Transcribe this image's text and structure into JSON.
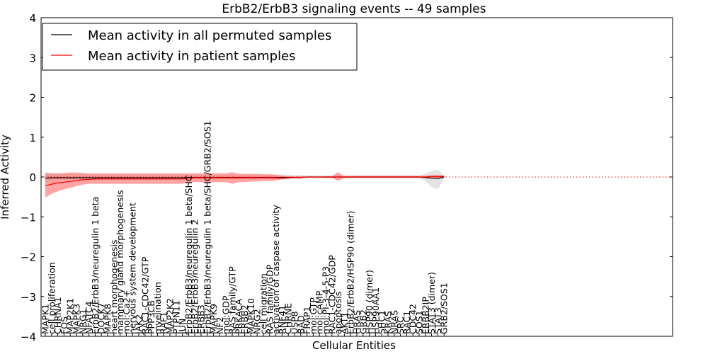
{
  "chart_data": {
    "type": "line",
    "title": "ErbB2/ErbB3 signaling events -- 49 samples",
    "xlabel": "Cellular Entities",
    "ylabel": "Inferred Activity",
    "ylim": [
      -4,
      4
    ],
    "yticks": [
      "−4",
      "−3",
      "−2",
      "−1",
      "0",
      "1",
      "2",
      "3",
      "4"
    ],
    "grid": false,
    "legend_position": "top-left",
    "reference_line": {
      "y": 0,
      "style": "dotted",
      "color": "#ff0000"
    },
    "categories": [
      "MAPK1",
      "cell proliferation",
      "CHRNA1",
      "FOS",
      "MAP2K1",
      "MAPK3",
      "NRG1",
      "NFATC4",
      "ErbB2/ErbB3/neuregulin 1 beta",
      "DOCK7",
      "MAPK8",
      "heart morphogenesis",
      "mammary gland morphogenesis",
      "mol:Ca2+",
      "nervous system development",
      "JAK2",
      "RAC1-CDC42/GTP",
      "PPP3CB",
      "myelination",
      "RAF1",
      "MAP2K2",
      "PTPN11",
      "JUN",
      "ErbB2/ErbB3/neuregulin 1 beta/SHC",
      "ErbB2/ErbB3/neuregulin 2",
      "ERBB3",
      "ErbB2/ErbB3/neuregulin 1 beta/SHC/GRB2/SOS1",
      "MAPK9",
      "NF2",
      "mol:GDP",
      "RAS family/GTP",
      "PRKACA",
      "ERBB2",
      "MAPK10",
      "NRG2",
      "cell migration",
      "RAS family/GDP",
      "activation of caspase activity",
      "RNF41",
      "CHRNE",
      "USP8",
      "BAD",
      "FRAP1",
      "mol:GTP",
      "mol:cAMP",
      "mol:PI-3-4-5-P3",
      "RAC1-CDC42/GDP",
      "apoptosis",
      "AKT1",
      "ErbB2/ErbB2/HSP90 (dimer)",
      "HRAS",
      "GRB2",
      "HSP90 (dimer)",
      "HSP90AA1",
      "SHC1",
      "KRAS",
      "NRAS",
      "SRC",
      "RAC1",
      "CDC42",
      "SOS1",
      "ERBB2IP",
      "STAT3 (dimer)",
      "STAT3",
      "GRB2/SOS1"
    ],
    "series": [
      {
        "name": "Mean activity in all permuted samples",
        "color": "#000000",
        "values": [
          -0.03,
          -0.02,
          -0.02,
          -0.02,
          -0.02,
          -0.02,
          -0.02,
          -0.02,
          -0.02,
          -0.02,
          -0.02,
          -0.02,
          -0.02,
          -0.02,
          -0.02,
          -0.02,
          -0.02,
          -0.02,
          -0.02,
          -0.02,
          -0.02,
          -0.02,
          -0.02,
          -0.01,
          -0.01,
          -0.01,
          -0.01,
          -0.01,
          -0.01,
          -0.01,
          -0.01,
          -0.01,
          -0.01,
          -0.01,
          -0.01,
          -0.01,
          -0.01,
          -0.01,
          -0.01,
          -0.01,
          -0.01,
          -0.01,
          0,
          0,
          0,
          0,
          0,
          0,
          0,
          0,
          0,
          0,
          0,
          0,
          0,
          0,
          0,
          0,
          0,
          0,
          0,
          -0.01,
          -0.03,
          -0.04,
          0
        ],
        "band_lower": [
          -0.12,
          -0.1,
          -0.09,
          -0.08,
          -0.08,
          -0.08,
          -0.08,
          -0.07,
          -0.07,
          -0.07,
          -0.07,
          -0.07,
          -0.07,
          -0.07,
          -0.07,
          -0.07,
          -0.07,
          -0.07,
          -0.07,
          -0.07,
          -0.07,
          -0.07,
          -0.07,
          -0.06,
          -0.06,
          -0.06,
          -0.06,
          -0.06,
          -0.06,
          -0.06,
          -0.06,
          -0.06,
          -0.06,
          -0.06,
          -0.06,
          -0.06,
          -0.06,
          -0.06,
          -0.06,
          -0.06,
          -0.05,
          -0.05,
          -0.04,
          -0.04,
          -0.04,
          -0.04,
          -0.04,
          -0.04,
          -0.04,
          -0.04,
          -0.04,
          -0.04,
          -0.04,
          -0.04,
          -0.04,
          -0.04,
          -0.04,
          -0.04,
          -0.04,
          -0.04,
          -0.04,
          -0.1,
          -0.25,
          -0.3,
          -0.05
        ],
        "band_upper": [
          0.12,
          0.1,
          0.09,
          0.08,
          0.08,
          0.08,
          0.08,
          0.07,
          0.07,
          0.07,
          0.07,
          0.07,
          0.07,
          0.07,
          0.07,
          0.07,
          0.07,
          0.07,
          0.07,
          0.07,
          0.07,
          0.07,
          0.07,
          0.06,
          0.06,
          0.06,
          0.06,
          0.06,
          0.06,
          0.06,
          0.06,
          0.06,
          0.06,
          0.06,
          0.06,
          0.06,
          0.06,
          0.06,
          0.06,
          0.06,
          0.05,
          0.05,
          0.04,
          0.04,
          0.04,
          0.04,
          0.04,
          0.04,
          0.04,
          0.04,
          0.04,
          0.04,
          0.04,
          0.04,
          0.04,
          0.04,
          0.04,
          0.04,
          0.04,
          0.04,
          0.04,
          0.08,
          0.15,
          0.18,
          0.04
        ],
        "band_color": "#cccccc"
      },
      {
        "name": "Mean activity in patient samples",
        "color": "#ff0000",
        "values": [
          -0.22,
          -0.18,
          -0.15,
          -0.13,
          -0.11,
          -0.09,
          -0.07,
          -0.06,
          -0.05,
          -0.05,
          -0.05,
          -0.05,
          -0.05,
          -0.05,
          -0.05,
          -0.05,
          -0.05,
          -0.05,
          -0.05,
          -0.05,
          -0.05,
          -0.05,
          -0.05,
          -0.03,
          -0.02,
          -0.02,
          -0.02,
          -0.02,
          -0.02,
          -0.02,
          -0.02,
          -0.02,
          -0.02,
          -0.02,
          -0.02,
          -0.02,
          -0.02,
          -0.02,
          -0.03,
          -0.02,
          -0.01,
          -0.01,
          0,
          0,
          0,
          0,
          0,
          0,
          0,
          0,
          0,
          0,
          0,
          0,
          0,
          0,
          0,
          0,
          0,
          0,
          0,
          0,
          0.01,
          0.01,
          0.01
        ],
        "band_lower": [
          -0.52,
          -0.42,
          -0.36,
          -0.31,
          -0.27,
          -0.23,
          -0.19,
          -0.17,
          -0.17,
          -0.17,
          -0.17,
          -0.17,
          -0.17,
          -0.17,
          -0.17,
          -0.17,
          -0.17,
          -0.17,
          -0.17,
          -0.17,
          -0.17,
          -0.17,
          -0.17,
          -0.14,
          -0.13,
          -0.13,
          -0.16,
          -0.13,
          -0.13,
          -0.13,
          -0.17,
          -0.13,
          -0.13,
          -0.11,
          -0.11,
          -0.1,
          -0.1,
          -0.09,
          -0.06,
          -0.04,
          -0.03,
          -0.03,
          -0.01,
          -0.01,
          -0.01,
          -0.02,
          -0.02,
          -0.1,
          -0.02,
          -0.02,
          -0.02,
          -0.02,
          -0.02,
          -0.02,
          -0.02,
          -0.02,
          -0.02,
          -0.02,
          -0.02,
          -0.02,
          -0.02,
          -0.02,
          -0.02,
          -0.02,
          -0.02
        ],
        "band_upper": [
          0.1,
          0.09,
          0.09,
          0.1,
          0.11,
          0.11,
          0.1,
          0.09,
          0.09,
          0.09,
          0.09,
          0.09,
          0.09,
          0.09,
          0.09,
          0.09,
          0.09,
          0.09,
          0.09,
          0.09,
          0.09,
          0.09,
          0.09,
          0.09,
          0.09,
          0.09,
          0.1,
          0.09,
          0.09,
          0.09,
          0.12,
          0.08,
          0.08,
          0.08,
          0.08,
          0.07,
          0.07,
          0.06,
          0.03,
          0.02,
          0.02,
          0.02,
          0.01,
          0.01,
          0.01,
          0.02,
          0.02,
          0.12,
          0.02,
          0.03,
          0.03,
          0.03,
          0.03,
          0.03,
          0.03,
          0.03,
          0.03,
          0.03,
          0.03,
          0.03,
          0.03,
          0.03,
          0.05,
          0.05,
          0.04
        ],
        "band_color": "#ff6666"
      }
    ]
  }
}
